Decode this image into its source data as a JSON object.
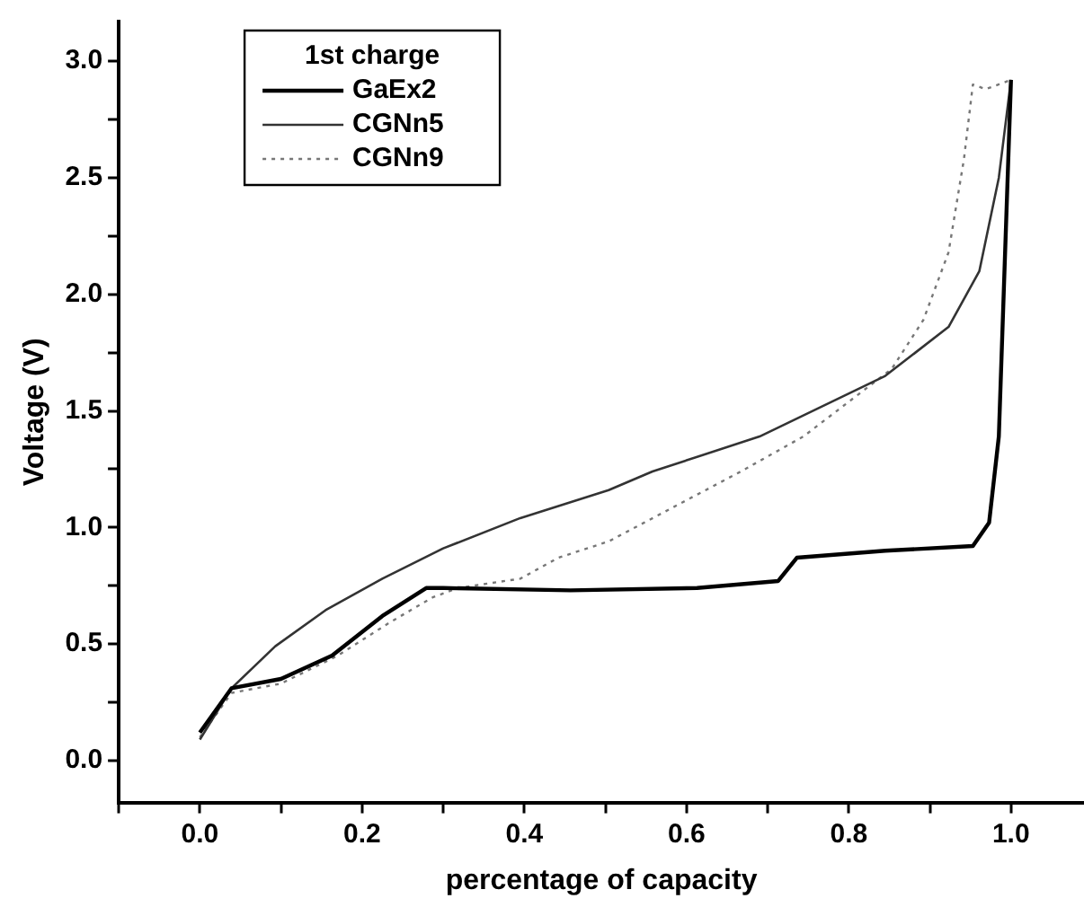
{
  "chart_data": {
    "type": "line",
    "xlabel": "percentage of capacity",
    "ylabel": "Voltage (V)",
    "legend_title": "1st charge",
    "legend": "top left",
    "xlim": [
      -0.1,
      1.09
    ],
    "ylim": [
      -0.18,
      3.17
    ],
    "xticks": [
      {
        "value": -0.1,
        "label": null
      },
      {
        "value": 0,
        "label": "0.0"
      },
      {
        "value": 0.1,
        "label": null
      },
      {
        "value": 0.2,
        "label": "0.2"
      },
      {
        "value": 0.3,
        "label": null
      },
      {
        "value": 0.4,
        "label": "0.4"
      },
      {
        "value": 0.5,
        "label": null
      },
      {
        "value": 0.6,
        "label": "0.6"
      },
      {
        "value": 0.7,
        "label": null
      },
      {
        "value": 0.8,
        "label": "0.8"
      },
      {
        "value": 0.9,
        "label": null
      },
      {
        "value": 1,
        "label": "1.0"
      }
    ],
    "yticks": [
      {
        "value": 0,
        "label": "0.0"
      },
      {
        "value": 0.25,
        "label": null
      },
      {
        "value": 0.5,
        "label": "0.5"
      },
      {
        "value": 0.75,
        "label": null
      },
      {
        "value": 1,
        "label": "1.0"
      },
      {
        "value": 1.25,
        "label": null
      },
      {
        "value": 1.5,
        "label": "1.5"
      },
      {
        "value": 1.75,
        "label": null
      },
      {
        "value": 2,
        "label": "2.0"
      },
      {
        "value": 2.25,
        "label": null
      },
      {
        "value": 2.5,
        "label": "2.5"
      },
      {
        "value": 2.75,
        "label": null
      },
      {
        "value": 3,
        "label": "3.0"
      }
    ],
    "marker": "none",
    "series": [
      {
        "name": "GaEx2",
        "color": "#000000",
        "line_style": "solid",
        "x": [
          0,
          0.039,
          0.1,
          0.163,
          0.225,
          0.279,
          0.3,
          0.457,
          0.613,
          0.713,
          0.736,
          0.845,
          0.953,
          0.973,
          0.985,
          1.0
        ],
        "values": [
          0.12,
          0.31,
          0.35,
          0.45,
          0.62,
          0.74,
          0.74,
          0.73,
          0.74,
          0.77,
          0.87,
          0.9,
          0.92,
          1.02,
          1.39,
          2.92
        ]
      },
      {
        "name": "CGNn5",
        "color": "#333333",
        "line_style": "solid",
        "x": [
          0,
          0.039,
          0.093,
          0.155,
          0.225,
          0.3,
          0.395,
          0.504,
          0.558,
          0.69,
          0.845,
          0.923,
          0.961,
          0.985,
          1.0
        ],
        "values": [
          0.09,
          0.31,
          0.49,
          0.645,
          0.78,
          0.91,
          1.04,
          1.16,
          1.24,
          1.39,
          1.65,
          1.86,
          2.1,
          2.5,
          2.92
        ]
      },
      {
        "name": "CGNn9",
        "color": "#777777",
        "line_style": "dotted",
        "x": [
          0,
          0.039,
          0.1,
          0.17,
          0.233,
          0.287,
          0.318,
          0.395,
          0.442,
          0.504,
          0.667,
          0.744,
          0.853,
          0.892,
          0.923,
          0.942,
          0.953,
          0.969,
          1.0
        ],
        "values": [
          0.1,
          0.29,
          0.33,
          0.45,
          0.59,
          0.7,
          0.74,
          0.78,
          0.87,
          0.94,
          1.24,
          1.39,
          1.68,
          1.89,
          2.18,
          2.58,
          2.9,
          2.88,
          2.92
        ]
      }
    ]
  }
}
